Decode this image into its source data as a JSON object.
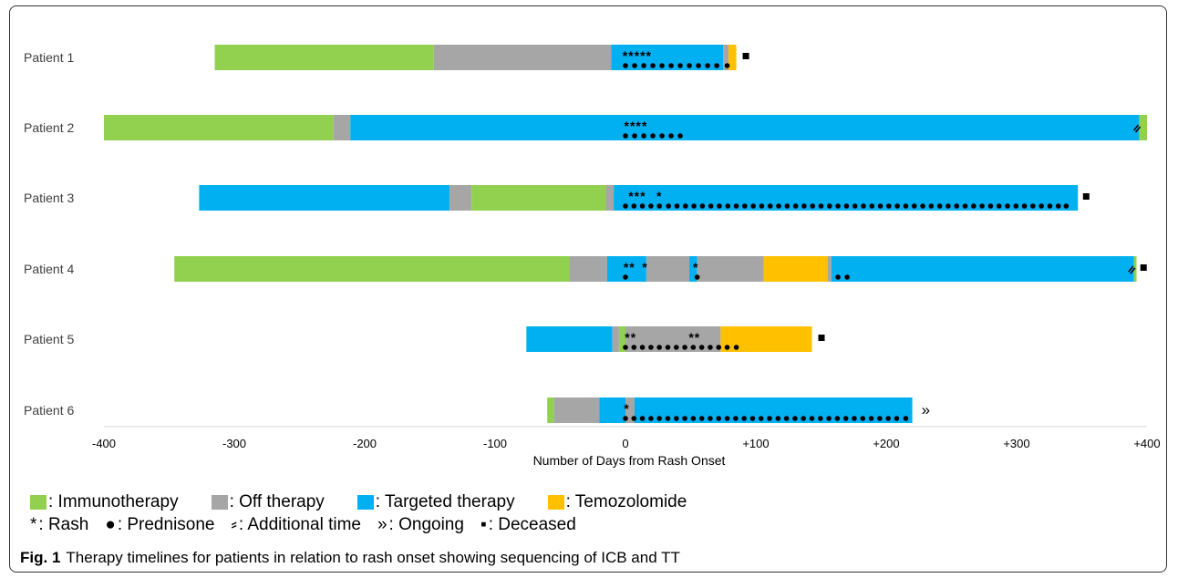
{
  "chart_data": {
    "type": "bar",
    "subtype": "horizontal-timeline",
    "xlabel": "Number of Days from Rash Onset",
    "xlim": [
      -400,
      400
    ],
    "xticks": [
      -400,
      -300,
      -200,
      -100,
      0,
      100,
      200,
      300,
      400
    ],
    "xtick_labels": [
      "-400",
      "-300",
      "-200",
      "-100",
      "0",
      "+100",
      "+200",
      "+300",
      "+400"
    ],
    "grid": "none",
    "legend_position": "bottom",
    "colors": {
      "immunotherapy": "#92d050",
      "off": "#a6a6a6",
      "targeted": "#00b0f0",
      "temozolomide": "#ffc000"
    },
    "patients": [
      {
        "label": "Patient 1",
        "segments": [
          {
            "type": "immunotherapy",
            "start": -315,
            "end": -147
          },
          {
            "type": "off",
            "start": -147,
            "end": -11
          },
          {
            "type": "targeted",
            "start": -11,
            "end": 75
          },
          {
            "type": "off",
            "start": 75,
            "end": 79
          },
          {
            "type": "temozolomide",
            "start": 79,
            "end": 85
          }
        ],
        "rash_marks": [
          "*****"
        ],
        "rash_days": [
          9
        ],
        "prednisone_days": [
          0,
          7,
          14,
          21,
          28,
          35,
          42,
          49,
          56,
          63,
          70,
          78
        ],
        "end_marker": "■",
        "end_marker_day": 92
      },
      {
        "label": "Patient 2",
        "segments": [
          {
            "type": "immunotherapy",
            "start": -400,
            "end": -224
          },
          {
            "type": "off",
            "start": -224,
            "end": -211
          },
          {
            "type": "targeted",
            "start": -211,
            "end": 394
          },
          {
            "type": "immunotherapy",
            "start": 394,
            "end": 400
          }
        ],
        "rash_marks": [
          "****"
        ],
        "rash_days": [
          8
        ],
        "prednisone_days": [
          0,
          7,
          14,
          21,
          28,
          35,
          42
        ],
        "additional_time": true,
        "additional_time_day": 392
      },
      {
        "label": "Patient 3",
        "segments": [
          {
            "type": "targeted",
            "start": -327,
            "end": -135
          },
          {
            "type": "off",
            "start": -135,
            "end": -118
          },
          {
            "type": "immunotherapy",
            "start": -118,
            "end": -15
          },
          {
            "type": "off",
            "start": -15,
            "end": -9
          },
          {
            "type": "targeted",
            "start": -9,
            "end": 347
          }
        ],
        "rash_marks": [
          "***",
          "*"
        ],
        "rash_days": [
          9,
          26
        ],
        "prednisone_days": [
          0,
          6.5,
          13,
          19.5,
          26,
          33,
          39.5,
          46,
          52.5,
          59,
          65.5,
          72,
          78.5,
          85,
          91.5,
          98,
          104.5,
          111,
          117.5,
          124,
          130.5,
          137,
          143.5,
          150,
          156.5,
          163,
          169.5,
          176,
          182.5,
          189,
          195.5,
          202,
          208.5,
          215,
          221.5,
          228,
          234.5,
          241,
          247.5,
          254,
          260.5,
          267,
          273.5,
          280,
          286.5,
          293,
          299.5,
          306,
          312.5,
          319,
          325.5,
          332,
          338
        ],
        "end_marker": "■",
        "end_marker_day": 353
      },
      {
        "label": "Patient 4",
        "segments": [
          {
            "type": "immunotherapy",
            "start": -346,
            "end": -43
          },
          {
            "type": "off",
            "start": -43,
            "end": -14
          },
          {
            "type": "targeted",
            "start": -14,
            "end": 16
          },
          {
            "type": "off",
            "start": 16,
            "end": 49
          },
          {
            "type": "targeted",
            "start": 49,
            "end": 55
          },
          {
            "type": "off",
            "start": 55,
            "end": 106
          },
          {
            "type": "temozolomide",
            "start": 106,
            "end": 155
          },
          {
            "type": "off",
            "start": 155,
            "end": 158
          },
          {
            "type": "targeted",
            "start": 158,
            "end": 390
          },
          {
            "type": "immunotherapy",
            "start": 390,
            "end": 392
          }
        ],
        "rash_marks": [
          "**",
          "*",
          "*"
        ],
        "rash_days": [
          3,
          15,
          54
        ],
        "prednisone_days": [
          0,
          55,
          163,
          170
        ],
        "additional_time": true,
        "additional_time_day": 388,
        "end_marker": "■",
        "end_marker_day": 397
      },
      {
        "label": "Patient 5",
        "segments": [
          {
            "type": "targeted",
            "start": -76,
            "end": -10
          },
          {
            "type": "off",
            "start": -10,
            "end": -5
          },
          {
            "type": "immunotherapy",
            "start": -5,
            "end": 0
          },
          {
            "type": "off",
            "start": 0,
            "end": 73
          },
          {
            "type": "temozolomide",
            "start": 73,
            "end": 143
          }
        ],
        "rash_marks": [
          "**",
          "**"
        ],
        "rash_days": [
          4,
          53
        ],
        "prednisone_days": [
          0,
          6.5,
          13,
          19.5,
          26,
          32.5,
          39,
          45.5,
          52,
          58.5,
          65,
          71.5,
          78,
          85
        ],
        "end_marker": "■",
        "end_marker_day": 150
      },
      {
        "label": "Patient 6",
        "segments": [
          {
            "type": "immunotherapy",
            "start": -60,
            "end": -55
          },
          {
            "type": "off",
            "start": -55,
            "end": -20
          },
          {
            "type": "targeted",
            "start": -20,
            "end": 0
          },
          {
            "type": "off",
            "start": 0,
            "end": 7
          },
          {
            "type": "targeted",
            "start": 7,
            "end": 220
          }
        ],
        "rash_marks": [
          "*"
        ],
        "rash_days": [
          1
        ],
        "prednisone_days": [
          0,
          6.5,
          13,
          19.5,
          26,
          32.5,
          39,
          45.5,
          52,
          58.5,
          65,
          71.5,
          78,
          84.5,
          91,
          97.5,
          104,
          110.5,
          117,
          123.5,
          130,
          136.5,
          143,
          149.5,
          156,
          162.5,
          169,
          175.5,
          182,
          188.5,
          195,
          201.5,
          208,
          215
        ],
        "end_marker": "»",
        "end_marker_day": 227
      }
    ]
  },
  "legend": {
    "row1": [
      {
        "key": "immunotherapy",
        "label": ": Immunotherapy"
      },
      {
        "key": "off",
        "label": ": Off therapy"
      },
      {
        "key": "targeted",
        "label": ": Targeted therapy"
      },
      {
        "key": "temozolomide",
        "label": ": Temozolomide"
      }
    ],
    "row2": [
      {
        "symbol": "*",
        "label": ": Rash"
      },
      {
        "symbol": "●",
        "label": ": Prednisone"
      },
      {
        "symbol": "⸗",
        "label": ": Additional time"
      },
      {
        "symbol": "»",
        "label": ": Ongoing"
      },
      {
        "symbol": "▪",
        "label": ": Deceased"
      }
    ]
  },
  "caption": {
    "label": "Fig. 1",
    "text": "Therapy timelines for patients in relation to rash onset showing sequencing of ICB and TT"
  }
}
